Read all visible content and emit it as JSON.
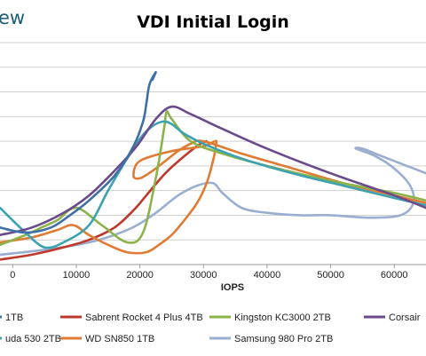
{
  "brand_fragment": "ew",
  "chart_data": {
    "type": "line",
    "title": "VDI Initial Login",
    "xlabel": "IOPS",
    "ylabel": "",
    "xlim": [
      -2000,
      65000
    ],
    "ylim": [
      0,
      9
    ],
    "x_ticks": [
      0,
      10000,
      20000,
      30000,
      40000,
      50000,
      60000
    ],
    "x_tick_labels": [
      "0",
      "10000",
      "20000",
      "30000",
      "40000",
      "50000",
      "60000"
    ],
    "grid": true,
    "legend": "bottom",
    "legend_labels": [
      "1TB",
      "Sabrent Rocket 4 Plus 4TB",
      "Kingston KC3000 2TB",
      "Corsair",
      "uda 530 2TB",
      "WD SN850 1TB",
      "Samsung 980 Pro 2TB"
    ],
    "series": [
      {
        "name": "1TB",
        "color": "#3f6fa8",
        "x": [
          -2000,
          2000,
          6000,
          9000,
          12000,
          16000,
          19000,
          20500,
          21000,
          21500,
          22500,
          22000
        ],
        "y": [
          1.5,
          1.3,
          1.5,
          2.0,
          2.6,
          3.6,
          4.8,
          5.8,
          6.5,
          7.3,
          7.8,
          7.5
        ]
      },
      {
        "name": "Sabrent Rocket 4 Plus 4TB",
        "color": "#c0382b",
        "x": [
          -2000,
          3000,
          8000,
          12000,
          16000,
          19000,
          21000,
          24000,
          27000,
          29500,
          30500
        ],
        "y": [
          0.2,
          0.4,
          0.7,
          1.0,
          1.5,
          2.2,
          2.8,
          3.7,
          4.4,
          4.9,
          5.0
        ]
      },
      {
        "name": "Kingston KC3000 2TB",
        "color": "#8bb34a",
        "x": [
          -2000,
          2000,
          4500,
          7000,
          10000,
          14000,
          18000,
          20500,
          22500,
          23800,
          24200,
          25000,
          28000,
          33000,
          40000,
          50000,
          60000,
          65000
        ],
        "y": [
          0.8,
          1.2,
          1.5,
          1.8,
          2.3,
          1.6,
          0.9,
          1.3,
          3.5,
          5.5,
          6.2,
          5.9,
          5.0,
          4.5,
          4.0,
          3.4,
          2.9,
          2.6
        ]
      },
      {
        "name": "Corsair",
        "color": "#6b4a8c",
        "x": [
          -2000,
          3000,
          8000,
          12000,
          16000,
          19500,
          22500,
          25000,
          28000,
          33000,
          40000,
          50000,
          60000,
          65000
        ],
        "y": [
          1.2,
          1.5,
          2.1,
          2.8,
          3.8,
          4.8,
          5.9,
          6.4,
          6.1,
          5.5,
          4.7,
          3.7,
          2.8,
          2.3
        ]
      },
      {
        "name": "uda 530 2TB",
        "color": "#3ca2b0",
        "x": [
          -2000,
          2000,
          5000,
          8000,
          12000,
          15000,
          18000,
          21000,
          24000,
          27000,
          30000,
          36000,
          44000,
          52000,
          60000,
          65000
        ],
        "y": [
          2.3,
          1.3,
          0.7,
          0.9,
          1.6,
          3.0,
          4.3,
          5.4,
          5.8,
          5.3,
          4.9,
          4.3,
          3.7,
          3.2,
          2.7,
          2.4
        ]
      },
      {
        "name": "WD SN850 1TB",
        "color": "#e07b34",
        "x": [
          -2000,
          3000,
          7000,
          9500,
          12000,
          15000,
          18000,
          21000,
          23000,
          25000,
          27000,
          29000,
          30500,
          31500,
          32000,
          31800,
          30000,
          25000,
          20000,
          19000,
          20000,
          22000,
          24000,
          26000,
          28000,
          30000,
          36000,
          44000,
          52000,
          60000,
          65000
        ],
        "y": [
          0.9,
          1.1,
          1.4,
          1.6,
          1.2,
          0.8,
          0.5,
          0.5,
          0.8,
          1.2,
          1.8,
          2.5,
          3.3,
          4.2,
          4.9,
          5.0,
          4.8,
          4.6,
          4.2,
          3.6,
          3.5,
          3.8,
          4.2,
          4.6,
          4.9,
          5.0,
          4.5,
          3.9,
          3.3,
          2.8,
          2.5
        ]
      },
      {
        "name": "Samsung 980 Pro 2TB",
        "color": "#9aafd0",
        "x": [
          -2000,
          5000,
          12000,
          18000,
          22000,
          26000,
          29000,
          31500,
          33000,
          36000,
          40000,
          45000,
          50000,
          56000,
          61000,
          63000,
          62500,
          60000,
          57000,
          54000,
          55000,
          58000,
          62000,
          65000
        ],
        "y": [
          0.4,
          0.6,
          0.9,
          1.4,
          2.0,
          2.8,
          3.2,
          3.3,
          2.9,
          2.3,
          2.1,
          2.0,
          2.0,
          1.9,
          2.0,
          2.5,
          3.2,
          3.9,
          4.4,
          4.7,
          4.7,
          4.4,
          4.0,
          3.7
        ]
      }
    ]
  }
}
